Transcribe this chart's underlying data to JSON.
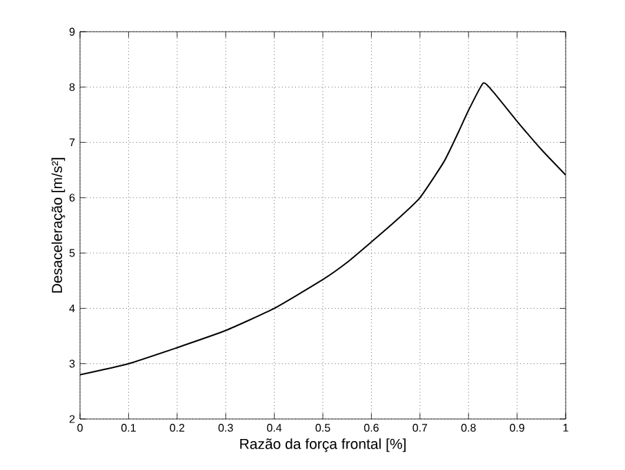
{
  "chart_data": {
    "type": "line",
    "xlabel": "Razão da força frontal  [%]",
    "ylabel": "Desaceleração [m/s²]",
    "x": [
      0,
      0.1,
      0.2,
      0.3,
      0.4,
      0.5,
      0.55,
      0.6,
      0.65,
      0.7,
      0.75,
      0.78,
      0.8,
      0.83,
      0.85,
      0.9,
      0.95,
      1.0
    ],
    "series": [
      {
        "color": "#000000",
        "values": [
          2.8,
          3.0,
          3.29,
          3.6,
          4.0,
          4.52,
          4.83,
          5.2,
          5.58,
          6.0,
          6.66,
          7.2,
          7.58,
          8.07,
          7.92,
          7.38,
          6.87,
          6.41
        ]
      }
    ],
    "xlim": [
      0,
      1
    ],
    "ylim": [
      2,
      9
    ],
    "xticks": [
      0,
      0.1,
      0.2,
      0.3,
      0.4,
      0.5,
      0.6,
      0.7,
      0.8,
      0.9,
      1
    ],
    "yticks": [
      2,
      3,
      4,
      5,
      6,
      7,
      8,
      9
    ],
    "grid": true,
    "line_style": "solid",
    "marker": "none"
  }
}
